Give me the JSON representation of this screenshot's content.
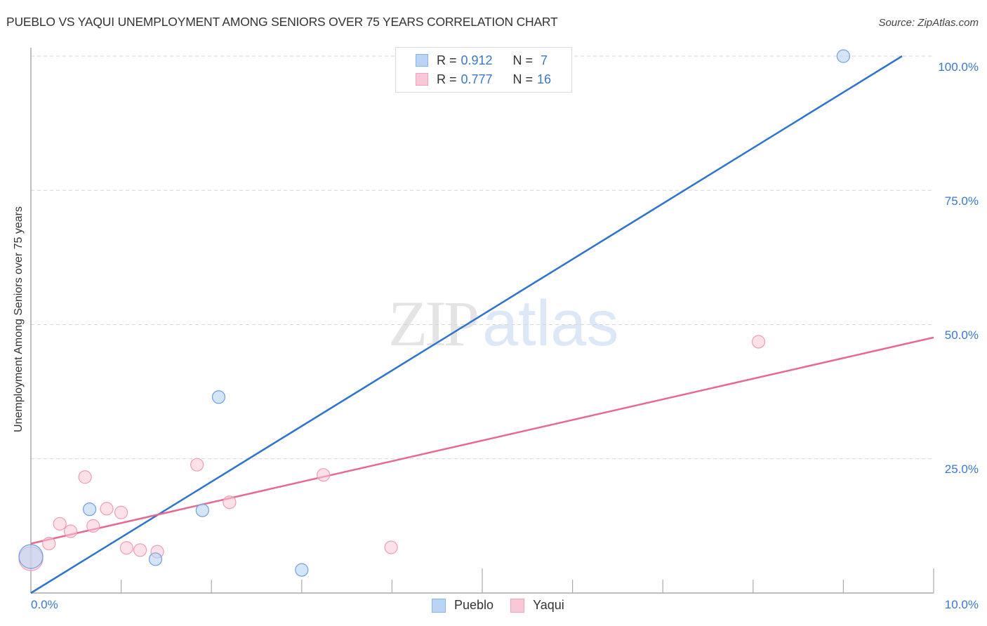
{
  "header": {
    "title": "PUEBLO VS YAQUI UNEMPLOYMENT AMONG SENIORS OVER 75 YEARS CORRELATION CHART",
    "source": "Source: ZipAtlas.com"
  },
  "watermark": {
    "zip": "ZIP",
    "atlas": "atlas"
  },
  "legend": {
    "rows": [
      {
        "r_label": "R = ",
        "r_value": "0.912",
        "n_label": "N = ",
        "n_value": " 7",
        "swatch_fill": "#b9d4f5",
        "swatch_border": "#8ab3e8"
      },
      {
        "r_label": "R = ",
        "r_value": "0.777",
        "n_label": "N = ",
        "n_value": "16",
        "swatch_fill": "#f9c8d7",
        "swatch_border": "#f0a3bb"
      }
    ],
    "bottom": [
      {
        "label": "Pueblo"
      },
      {
        "label": "Yaqui"
      }
    ]
  },
  "axes": {
    "y_label": "Unemployment Among Seniors over 75 years",
    "y_ticks": [
      "100.0%",
      "75.0%",
      "50.0%",
      "25.0%"
    ],
    "x_ticks": [
      "0.0%",
      "10.0%"
    ]
  },
  "colors": {
    "pueblo": "#2d74d0",
    "yaqui": "#e8698f",
    "tick_label": "#3b78c9"
  },
  "chart_data": {
    "type": "scatter",
    "title": "PUEBLO VS YAQUI UNEMPLOYMENT AMONG SENIORS OVER 75 YEARS CORRELATION CHART",
    "xlabel": "",
    "ylabel": "Unemployment Among Seniors over 75 years",
    "xlim": [
      0,
      10
    ],
    "ylim": [
      0,
      100
    ],
    "x_unit": "%",
    "y_unit": "%",
    "grid": true,
    "legend_position": "top-center (stats) and bottom-center (series)",
    "series": [
      {
        "name": "Pueblo",
        "color": "#2d74d0",
        "R": 0.912,
        "N": 7,
        "points": [
          {
            "x": 0.0,
            "y": 6.8,
            "size": "large"
          },
          {
            "x": 0.65,
            "y": 15.6
          },
          {
            "x": 1.38,
            "y": 6.3
          },
          {
            "x": 1.9,
            "y": 15.4
          },
          {
            "x": 2.08,
            "y": 36.5
          },
          {
            "x": 3.0,
            "y": 4.3
          },
          {
            "x": 9.0,
            "y": 100.0
          }
        ],
        "trendline": {
          "x": [
            0.0,
            9.65
          ],
          "y": [
            0.0,
            100.0
          ]
        }
      },
      {
        "name": "Yaqui",
        "color": "#e8698f",
        "R": 0.777,
        "N": 16,
        "points": [
          {
            "x": 0.0,
            "y": 6.4,
            "size": "large"
          },
          {
            "x": 0.2,
            "y": 9.2
          },
          {
            "x": 0.32,
            "y": 12.9
          },
          {
            "x": 0.44,
            "y": 11.5
          },
          {
            "x": 0.6,
            "y": 21.6
          },
          {
            "x": 0.69,
            "y": 12.5
          },
          {
            "x": 0.84,
            "y": 15.7
          },
          {
            "x": 1.0,
            "y": 15.0
          },
          {
            "x": 1.06,
            "y": 8.4
          },
          {
            "x": 1.21,
            "y": 8.0
          },
          {
            "x": 1.4,
            "y": 7.7
          },
          {
            "x": 1.84,
            "y": 23.9
          },
          {
            "x": 2.2,
            "y": 16.9
          },
          {
            "x": 3.24,
            "y": 22.0
          },
          {
            "x": 3.99,
            "y": 8.5
          },
          {
            "x": 8.06,
            "y": 46.8
          }
        ],
        "trendline": {
          "x": [
            0.0,
            10.0
          ],
          "y": [
            9.2,
            47.6
          ]
        }
      }
    ]
  }
}
